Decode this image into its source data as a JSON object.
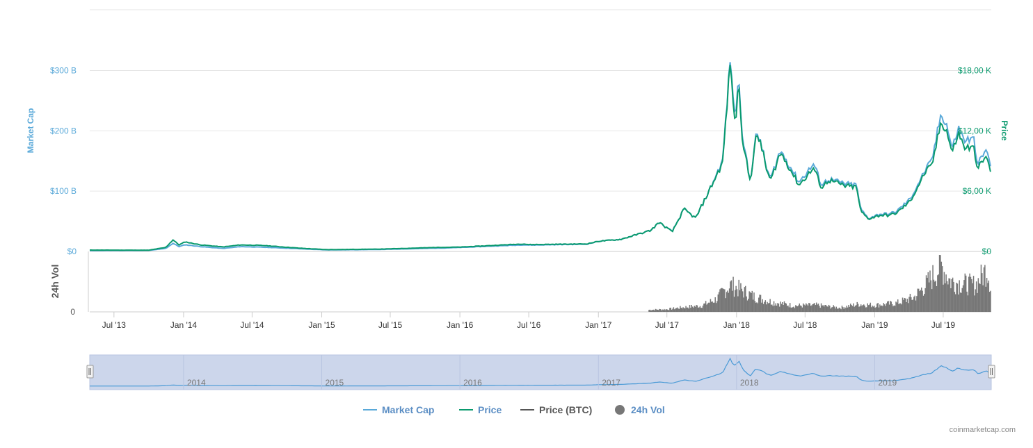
{
  "chart_data": {
    "type": "line",
    "x_range": [
      "2013-04-28",
      "2019-11-05"
    ],
    "y_left": {
      "label": "Market Cap",
      "ticks": [
        "$0",
        "$100 B",
        "$200 B",
        "$300 B"
      ],
      "ylim": [
        0,
        300
      ]
    },
    "y_right": {
      "label": "Price",
      "ticks": [
        "$0",
        "$6,00 K",
        "$12,00 K",
        "$18,00 K"
      ],
      "ylim": [
        0,
        18000
      ]
    },
    "y_volume": {
      "label": "24h Vol",
      "ticks": [
        "0"
      ]
    },
    "x_ticks": [
      "Jul '13",
      "Jan '14",
      "Jul '14",
      "Jan '15",
      "Jul '15",
      "Jan '16",
      "Jul '16",
      "Jan '17",
      "Jul '17",
      "Jan '18",
      "Jul '18",
      "Jan '19",
      "Jul '19"
    ],
    "navigator_labels": [
      "2014",
      "2015",
      "2016",
      "2017",
      "2018",
      "2019"
    ],
    "series": [
      {
        "name": "Market Cap",
        "color": "#5aa9d9",
        "unit": "billion USD",
        "points": [
          [
            "2013-04-28",
            1.5
          ],
          [
            "2013-10-01",
            1.7
          ],
          [
            "2013-11-15",
            5
          ],
          [
            "2013-12-04",
            13.5
          ],
          [
            "2013-12-20",
            8
          ],
          [
            "2014-01-05",
            11
          ],
          [
            "2014-02-15",
            8
          ],
          [
            "2014-04-15",
            5
          ],
          [
            "2014-06-01",
            8
          ],
          [
            "2014-08-01",
            7
          ],
          [
            "2014-11-01",
            4.5
          ],
          [
            "2015-01-14",
            2.5
          ],
          [
            "2015-06-01",
            3.2
          ],
          [
            "2015-11-05",
            5.5
          ],
          [
            "2016-01-01",
            6.5
          ],
          [
            "2016-06-17",
            11
          ],
          [
            "2016-07-01",
            10.5
          ],
          [
            "2016-12-01",
            12
          ],
          [
            "2017-01-03",
            17
          ],
          [
            "2017-03-01",
            20
          ],
          [
            "2017-05-20",
            35
          ],
          [
            "2017-06-10",
            48
          ],
          [
            "2017-07-15",
            33
          ],
          [
            "2017-08-15",
            70
          ],
          [
            "2017-09-15",
            55
          ],
          [
            "2017-10-20",
            100
          ],
          [
            "2017-11-25",
            150
          ],
          [
            "2017-12-17",
            330
          ],
          [
            "2017-12-22",
            250
          ],
          [
            "2017-12-30",
            230
          ],
          [
            "2018-01-07",
            290
          ],
          [
            "2018-01-17",
            190
          ],
          [
            "2018-02-06",
            115
          ],
          [
            "2018-02-20",
            190
          ],
          [
            "2018-03-05",
            185
          ],
          [
            "2018-03-20",
            140
          ],
          [
            "2018-04-01",
            120
          ],
          [
            "2018-04-25",
            165
          ],
          [
            "2018-05-05",
            160
          ],
          [
            "2018-06-15",
            115
          ],
          [
            "2018-07-24",
            145
          ],
          [
            "2018-08-14",
            110
          ],
          [
            "2018-09-01",
            120
          ],
          [
            "2018-10-15",
            112
          ],
          [
            "2018-11-14",
            110
          ],
          [
            "2018-11-25",
            70
          ],
          [
            "2018-12-15",
            55
          ],
          [
            "2019-01-15",
            62
          ],
          [
            "2019-02-10",
            62
          ],
          [
            "2019-03-01",
            67
          ],
          [
            "2019-04-05",
            87
          ],
          [
            "2019-05-15",
            135
          ],
          [
            "2019-06-01",
            150
          ],
          [
            "2019-06-26",
            230
          ],
          [
            "2019-07-10",
            210
          ],
          [
            "2019-07-25",
            170
          ],
          [
            "2019-08-10",
            205
          ],
          [
            "2019-08-25",
            185
          ],
          [
            "2019-09-20",
            185
          ],
          [
            "2019-10-01",
            145
          ],
          [
            "2019-10-25",
            170
          ],
          [
            "2019-11-05",
            130
          ]
        ]
      },
      {
        "name": "Price",
        "color": "#0a9a6e",
        "unit": "USD",
        "points": [
          [
            "2013-04-28",
            135
          ],
          [
            "2013-10-01",
            125
          ],
          [
            "2013-11-15",
            400
          ],
          [
            "2013-12-04",
            1150
          ],
          [
            "2013-12-20",
            650
          ],
          [
            "2014-01-05",
            950
          ],
          [
            "2014-02-15",
            650
          ],
          [
            "2014-04-15",
            450
          ],
          [
            "2014-06-01",
            650
          ],
          [
            "2014-08-01",
            590
          ],
          [
            "2014-11-01",
            330
          ],
          [
            "2015-01-14",
            180
          ],
          [
            "2015-06-01",
            230
          ],
          [
            "2015-11-05",
            400
          ],
          [
            "2016-01-01",
            430
          ],
          [
            "2016-06-17",
            750
          ],
          [
            "2016-07-01",
            680
          ],
          [
            "2016-12-01",
            750
          ],
          [
            "2017-01-03",
            1020
          ],
          [
            "2017-03-01",
            1200
          ],
          [
            "2017-05-20",
            2100
          ],
          [
            "2017-06-10",
            2900
          ],
          [
            "2017-07-15",
            1950
          ],
          [
            "2017-08-15",
            4200
          ],
          [
            "2017-09-15",
            3300
          ],
          [
            "2017-10-20",
            6000
          ],
          [
            "2017-11-25",
            8800
          ],
          [
            "2017-12-17",
            19500
          ],
          [
            "2017-12-22",
            14500
          ],
          [
            "2017-12-30",
            13000
          ],
          [
            "2018-01-07",
            17000
          ],
          [
            "2018-01-17",
            11000
          ],
          [
            "2018-02-06",
            6900
          ],
          [
            "2018-02-20",
            11200
          ],
          [
            "2018-03-05",
            11000
          ],
          [
            "2018-03-20",
            8300
          ],
          [
            "2018-04-01",
            7000
          ],
          [
            "2018-04-25",
            9700
          ],
          [
            "2018-05-05",
            9400
          ],
          [
            "2018-06-15",
            6600
          ],
          [
            "2018-07-24",
            8300
          ],
          [
            "2018-08-14",
            6300
          ],
          [
            "2018-09-01",
            7100
          ],
          [
            "2018-10-15",
            6500
          ],
          [
            "2018-11-14",
            6400
          ],
          [
            "2018-11-25",
            4000
          ],
          [
            "2018-12-15",
            3250
          ],
          [
            "2019-01-15",
            3600
          ],
          [
            "2019-02-10",
            3600
          ],
          [
            "2019-03-01",
            3850
          ],
          [
            "2019-04-05",
            5000
          ],
          [
            "2019-05-15",
            7900
          ],
          [
            "2019-06-01",
            8500
          ],
          [
            "2019-06-26",
            13000
          ],
          [
            "2019-07-10",
            12000
          ],
          [
            "2019-07-25",
            9800
          ],
          [
            "2019-08-10",
            11800
          ],
          [
            "2019-08-25",
            10400
          ],
          [
            "2019-09-20",
            10200
          ],
          [
            "2019-10-01",
            8300
          ],
          [
            "2019-10-25",
            9500
          ],
          [
            "2019-11-05",
            7300
          ]
        ]
      },
      {
        "name": "24h Vol",
        "color": "#777777",
        "unit": "relative",
        "points": [
          [
            "2017-05-15",
            0.04
          ],
          [
            "2017-07-01",
            0.05
          ],
          [
            "2017-08-15",
            0.09
          ],
          [
            "2017-10-01",
            0.12
          ],
          [
            "2017-11-10",
            0.25
          ],
          [
            "2017-12-01",
            0.42
          ],
          [
            "2017-12-17",
            0.52
          ],
          [
            "2018-01-15",
            0.42
          ],
          [
            "2018-02-15",
            0.3
          ],
          [
            "2018-04-01",
            0.2
          ],
          [
            "2018-06-01",
            0.12
          ],
          [
            "2018-08-01",
            0.13
          ],
          [
            "2018-10-01",
            0.08
          ],
          [
            "2018-11-20",
            0.15
          ],
          [
            "2019-01-01",
            0.13
          ],
          [
            "2019-03-01",
            0.17
          ],
          [
            "2019-04-15",
            0.28
          ],
          [
            "2019-05-20",
            0.55
          ],
          [
            "2019-06-26",
            0.9
          ],
          [
            "2019-07-20",
            0.6
          ],
          [
            "2019-08-20",
            0.55
          ],
          [
            "2019-09-25",
            0.52
          ],
          [
            "2019-10-26",
            0.85
          ],
          [
            "2019-11-05",
            0.45
          ]
        ]
      }
    ],
    "legend": [
      {
        "name": "Market Cap",
        "marker": "line",
        "color": "#5aa9d9",
        "text_color": "#5b8ec4"
      },
      {
        "name": "Price",
        "marker": "line",
        "color": "#0a9a6e",
        "text_color": "#5b8ec4"
      },
      {
        "name": "Price (BTC)",
        "marker": "line",
        "color": "#555555",
        "text_color": "#555555"
      },
      {
        "name": "24h Vol",
        "marker": "circle",
        "color": "#777777",
        "text_color": "#5b8ec4"
      }
    ],
    "legend_position": "bottom-center",
    "credit": "coinmarketcap.com",
    "grid": true
  }
}
